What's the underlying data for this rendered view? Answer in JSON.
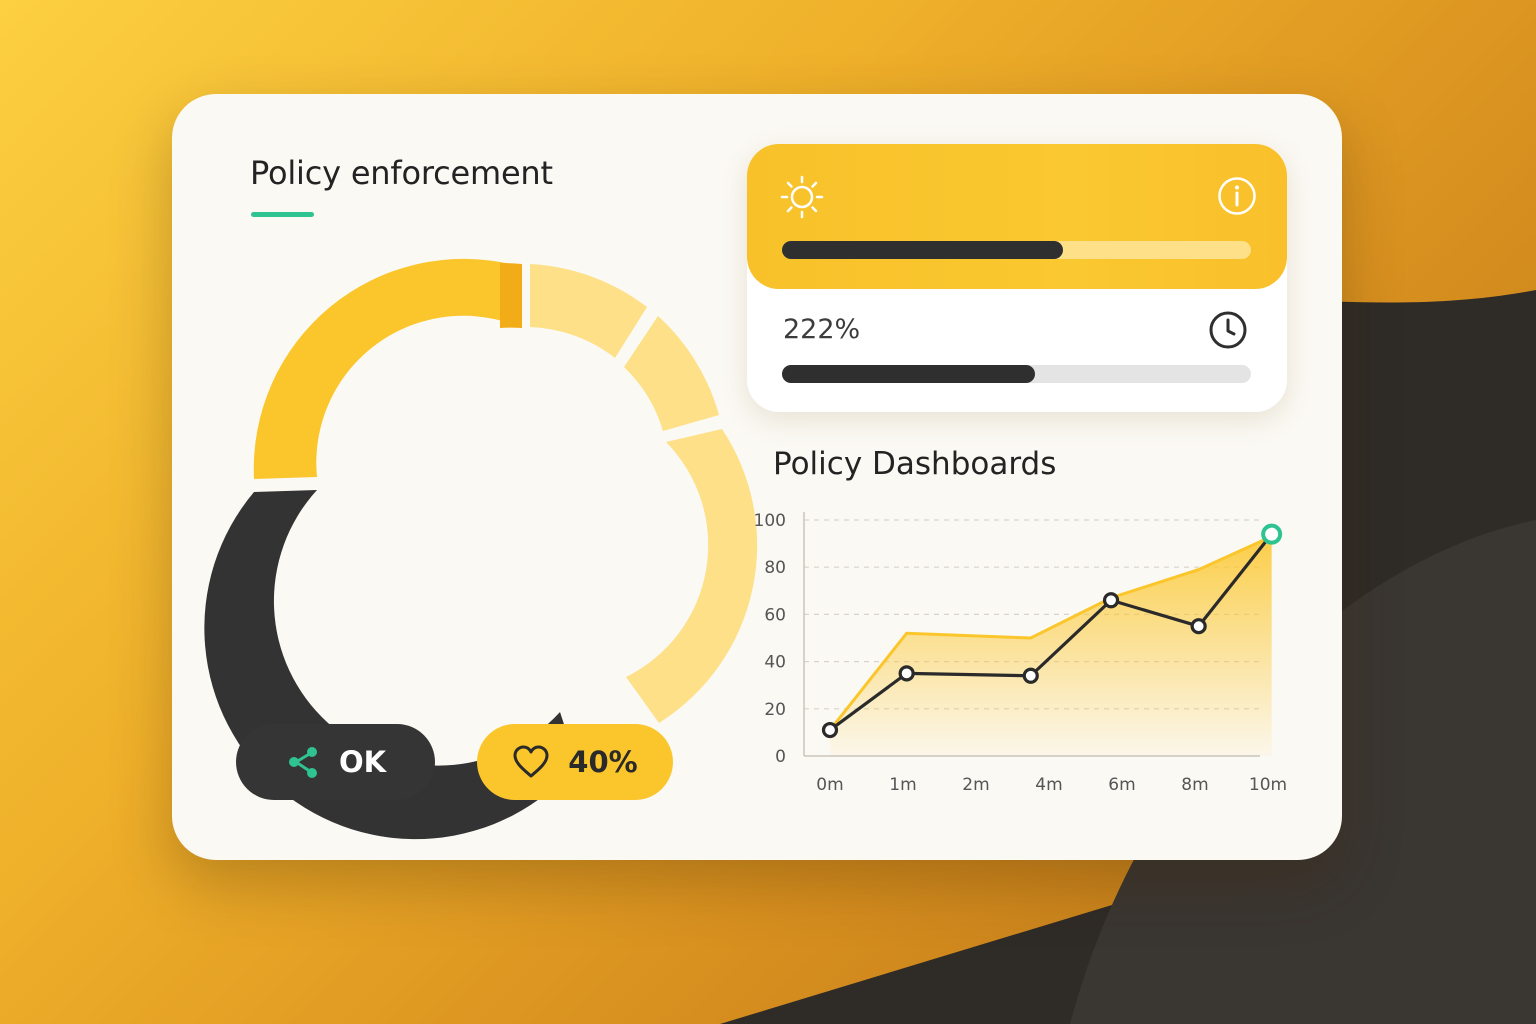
{
  "colors": {
    "accent_yellow": "#fbc62b",
    "dark": "#333333",
    "accent_green": "#2fc391",
    "light_yellow": "#fde087",
    "card": "#fbf9f4"
  },
  "left_panel": {
    "title": "Policy enforcement",
    "donut": {
      "segments": [
        {
          "share": 0.25,
          "color": "#fbc62b"
        },
        {
          "share": 0.3,
          "color": "#333333"
        },
        {
          "share": 0.45,
          "color": "#fde087"
        }
      ]
    },
    "buttons": {
      "share": {
        "label": "OK",
        "icon": "share-icon"
      },
      "favorite": {
        "label": "40%",
        "icon": "heart-icon"
      }
    }
  },
  "status_card": {
    "top": {
      "icon_left": "sun-icon",
      "icon_right": "info-icon",
      "progress": 0.6
    },
    "bottom": {
      "label": "222%",
      "icon": "clock-icon",
      "progress": 0.54
    }
  },
  "chart_section": {
    "title": "Policy Dashboards"
  },
  "chart_data": {
    "type": "line",
    "title": "Policy Dashboards",
    "xlabel": "",
    "ylabel": "",
    "x_ticks": [
      "0m",
      "1m",
      "2m",
      "4m",
      "6m",
      "8m",
      "10m"
    ],
    "y_ticks": [
      "0",
      "20",
      "40",
      "60",
      "80",
      "100"
    ],
    "ylim": [
      0,
      100
    ],
    "grid": true,
    "series": [
      {
        "style": "line-markers",
        "color": "#2a2a2a",
        "points": [
          {
            "x": 0,
            "y": 11
          },
          {
            "x": 1.05,
            "y": 35
          },
          {
            "x": 2.75,
            "y": 34
          },
          {
            "x": 3.85,
            "y": 66
          },
          {
            "x": 5.05,
            "y": 55
          },
          {
            "x": 6.05,
            "y": 94
          }
        ]
      },
      {
        "style": "area",
        "color": "#fbc62b",
        "points": [
          {
            "x": 0,
            "y": 11
          },
          {
            "x": 1.05,
            "y": 52
          },
          {
            "x": 2.75,
            "y": 50
          },
          {
            "x": 3.85,
            "y": 67
          },
          {
            "x": 5.05,
            "y": 79
          },
          {
            "x": 6.05,
            "y": 93
          }
        ]
      }
    ]
  }
}
